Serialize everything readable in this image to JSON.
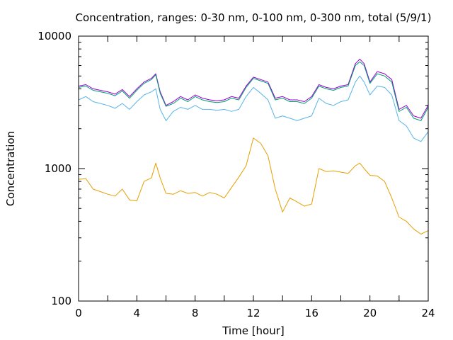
{
  "chart_data": {
    "type": "line",
    "title": "Concentration, ranges: 0-30 nm, 0-100 nm, 0-300 nm, total (5/9/1)",
    "xlabel": "Time [hour]",
    "ylabel": "Concentration",
    "x_ticks": [
      "0",
      "4",
      "8",
      "12",
      "16",
      "20",
      "24"
    ],
    "y_ticks": [
      "100",
      "1000",
      "10000"
    ],
    "xlim": [
      0,
      24
    ],
    "ylim": [
      100,
      10000
    ],
    "y_scale": "log",
    "grid": false,
    "legend": "none",
    "x": [
      0,
      0.5,
      1,
      1.5,
      2,
      2.5,
      3,
      3.5,
      4,
      4.5,
      5,
      5.3,
      5.6,
      6,
      6.5,
      7,
      7.5,
      8,
      8.5,
      9,
      9.5,
      10,
      10.5,
      11,
      11.5,
      12,
      12.5,
      13,
      13.5,
      14,
      14.5,
      15,
      15.5,
      16,
      16.5,
      17,
      17.5,
      18,
      18.5,
      19,
      19.3,
      19.6,
      20,
      20.5,
      21,
      21.5,
      22,
      22.5,
      23,
      23.5,
      24
    ],
    "series": [
      {
        "color": "#9400d3",
        "values": [
          4200,
          4300,
          4000,
          3900,
          3800,
          3650,
          3950,
          3500,
          4000,
          4500,
          4800,
          5200,
          3800,
          3000,
          3200,
          3500,
          3300,
          3600,
          3400,
          3300,
          3250,
          3300,
          3500,
          3400,
          4200,
          4900,
          4700,
          4500,
          3400,
          3500,
          3300,
          3300,
          3200,
          3500,
          4300,
          4100,
          4000,
          4200,
          4300,
          6200,
          6700,
          6200,
          4500,
          5400,
          5200,
          4700,
          2800,
          3000,
          2500,
          2400,
          3000
        ]
      },
      {
        "color": "#009e73",
        "values": [
          4100,
          4200,
          3900,
          3800,
          3700,
          3550,
          3850,
          3400,
          3900,
          4400,
          4700,
          5100,
          3700,
          2950,
          3100,
          3400,
          3200,
          3500,
          3300,
          3200,
          3150,
          3200,
          3400,
          3300,
          4100,
          4800,
          4600,
          4400,
          3300,
          3400,
          3200,
          3200,
          3100,
          3400,
          4200,
          4000,
          3900,
          4100,
          4200,
          6000,
          6400,
          6000,
          4400,
          5200,
          5000,
          4500,
          2700,
          2900,
          2400,
          2300,
          2900
        ]
      },
      {
        "color": "#56b4e9",
        "values": [
          3300,
          3500,
          3200,
          3100,
          3000,
          2850,
          3100,
          2800,
          3200,
          3600,
          3800,
          4000,
          2800,
          2300,
          2700,
          2900,
          2800,
          3000,
          2800,
          2800,
          2750,
          2800,
          2700,
          2800,
          3500,
          4100,
          3700,
          3300,
          2400,
          2500,
          2400,
          2300,
          2400,
          2500,
          3400,
          3100,
          3000,
          3200,
          3300,
          4500,
          5000,
          4500,
          3600,
          4200,
          4100,
          3600,
          2300,
          2100,
          1700,
          1600,
          1900
        ]
      },
      {
        "color": "#e69f00",
        "values": [
          830,
          840,
          700,
          670,
          640,
          620,
          700,
          580,
          570,
          800,
          850,
          1100,
          850,
          650,
          640,
          680,
          650,
          660,
          620,
          660,
          640,
          600,
          720,
          860,
          1050,
          1700,
          1550,
          1250,
          700,
          470,
          600,
          560,
          520,
          540,
          1000,
          950,
          960,
          940,
          920,
          1050,
          1100,
          1000,
          890,
          880,
          800,
          600,
          430,
          400,
          350,
          320,
          340
        ]
      }
    ]
  }
}
